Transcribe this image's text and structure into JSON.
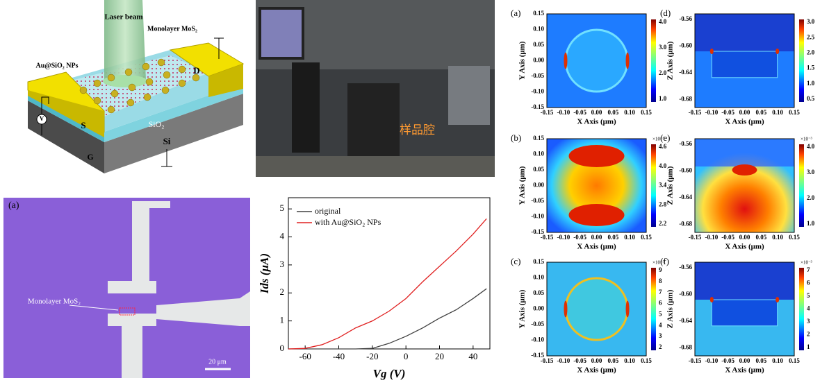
{
  "schematic": {
    "labels": [
      "Laser beam",
      "Monolayer MoS₂",
      "Au@SiO₂ NPs",
      "S",
      "D",
      "SiO₂",
      "Si",
      "G",
      "V"
    ]
  },
  "photo": {
    "label": "样品腔"
  },
  "micrograph": {
    "panel": "(a)",
    "label": "Monolayer MoS₂",
    "scale": "20 μm"
  },
  "chart_data": {
    "type": "line",
    "xlabel": "Vg (V)",
    "ylabel": "Ids (μA)",
    "x": [
      -70,
      -60,
      -50,
      -40,
      -30,
      -20,
      -10,
      0,
      10,
      20,
      30,
      40,
      48
    ],
    "series": [
      {
        "name": "original",
        "color": "#404040",
        "values": [
          0,
          0,
          0,
          0,
          0,
          0.02,
          0.2,
          0.45,
          0.75,
          1.1,
          1.4,
          1.8,
          2.15
        ]
      },
      {
        "name": "with Au@SiO₂ NPs",
        "color": "#e02020",
        "values": [
          0,
          0.02,
          0.15,
          0.4,
          0.75,
          1.0,
          1.35,
          1.8,
          2.4,
          2.95,
          3.5,
          4.1,
          4.65
        ]
      }
    ],
    "xlim": [
      -70,
      50
    ],
    "xticks": [
      -60,
      -40,
      -20,
      0,
      20,
      40
    ],
    "ylim": [
      0,
      5.4
    ],
    "yticks": [
      0,
      1,
      2,
      3,
      4,
      5
    ],
    "legend": "upper left"
  },
  "maps": [
    {
      "panel": "(a)",
      "xlabel": "X Axis (μm)",
      "ylabel": "Y Axis (μm)",
      "xticks": [
        "-0.15",
        "-0.10",
        "-0.05",
        "0.00",
        "0.05",
        "0.10",
        "0.15"
      ],
      "yticks": [
        "0.15",
        "0.10",
        "0.05",
        "0.00",
        "-0.05",
        "-0.10",
        "-0.15"
      ],
      "cbar": [
        "4.0",
        "3.0",
        "2.0",
        "1.0"
      ]
    },
    {
      "panel": "(b)",
      "xlabel": "X Axis (μm)",
      "ylabel": "Y Axis (μm)",
      "xticks": [
        "-0.15",
        "-0.10",
        "-0.05",
        "0.00",
        "0.05",
        "0.10",
        "0.15"
      ],
      "yticks": [
        "0.15",
        "0.10",
        "0.05",
        "0.00",
        "-0.05",
        "-0.10",
        "-0.15"
      ],
      "cbar": [
        "4.6",
        "4.0",
        "3.4",
        "2.8",
        "2.2"
      ],
      "cbar_unit": "×10⁻³"
    },
    {
      "panel": "(c)",
      "xlabel": "X Axis (μm)",
      "ylabel": "Y Axis (μm)",
      "xticks": [
        "-0.15",
        "-0.10",
        "-0.05",
        "0.00",
        "0.05",
        "0.10",
        "0.15"
      ],
      "yticks": [
        "0.15",
        "0.10",
        "0.05",
        "0.00",
        "-0.05",
        "-0.10",
        "-0.15"
      ],
      "cbar": [
        "9",
        "8",
        "7",
        "6",
        "5",
        "4",
        "3",
        "2"
      ],
      "cbar_unit": "×10⁻³"
    },
    {
      "panel": "(d)",
      "xlabel": "X Axis (μm)",
      "ylabel": "Z Axis (μm)",
      "xticks": [
        "-0.15",
        "-0.10",
        "-0.05",
        "0.00",
        "0.05",
        "0.10",
        "0.15"
      ],
      "yticks": [
        "-0.56",
        "-0.60",
        "-0.64",
        "-0.68"
      ],
      "cbar": [
        "3.0",
        "2.5",
        "2.0",
        "1.5",
        "1.0",
        "0.5"
      ]
    },
    {
      "panel": "(e)",
      "xlabel": "X Axis (μm)",
      "ylabel": "Z Axis (μm)",
      "xticks": [
        "-0.15",
        "-0.10",
        "-0.05",
        "0.00",
        "0.05",
        "0.10",
        "0.15"
      ],
      "yticks": [
        "-0.56",
        "-0.60",
        "-0.64",
        "-0.68"
      ],
      "cbar": [
        "4.0",
        "3.0",
        "2.0",
        "1.0"
      ],
      "cbar_unit": "×10⁻³"
    },
    {
      "panel": "(f)",
      "xlabel": "X Axis (μm)",
      "ylabel": "Z Axis (μm)",
      "xticks": [
        "-0.15",
        "-0.10",
        "-0.05",
        "0.00",
        "0.05",
        "0.10",
        "0.15"
      ],
      "yticks": [
        "-0.56",
        "-0.60",
        "-0.64",
        "-0.68"
      ],
      "cbar": [
        "7",
        "6",
        "5",
        "4",
        "3",
        "2",
        "1"
      ],
      "cbar_unit": "×10⁻³"
    }
  ]
}
